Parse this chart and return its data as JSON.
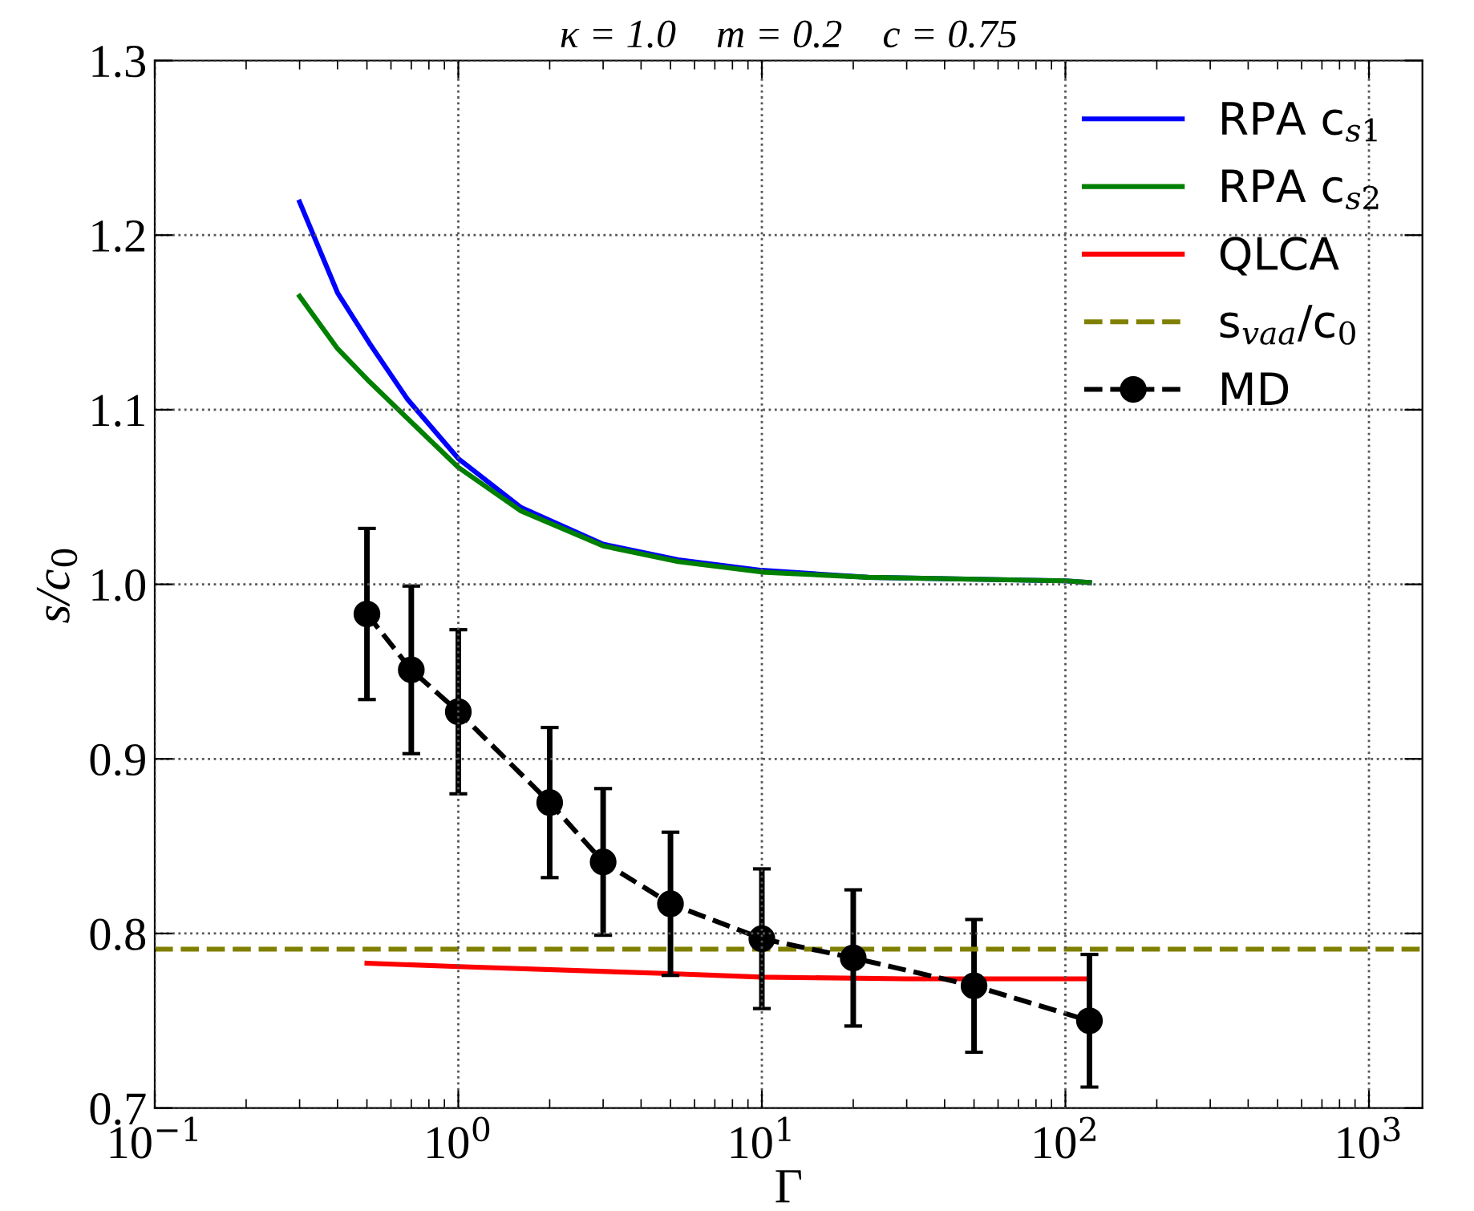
{
  "chart_data": {
    "type": "line",
    "title": "κ = 1.0    m = 0.2    c = 0.75",
    "xlabel": "Γ",
    "ylabel": "s/c$_{0}$",
    "log": "x",
    "grid": true,
    "legend": "top right",
    "xlim": [
      0.1,
      1500
    ],
    "ylim": [
      0.7,
      1.3
    ],
    "xticks": [
      {
        "value": 0.1,
        "label": "10$^{−1}$"
      },
      {
        "value": 1,
        "label": "10$^{0}$"
      },
      {
        "value": 10,
        "label": "10$^{1}$"
      },
      {
        "value": 100,
        "label": "10$^{2}$"
      },
      {
        "value": 1000,
        "label": "10$^{3}$"
      }
    ],
    "yticks": [
      0.7,
      0.8,
      0.9,
      {
        "value": 1.0,
        "label": "1.0"
      },
      1.1,
      1.2,
      1.3
    ],
    "series": [
      {
        "name": "RPA c$_{s1}$",
        "color": "#0000ff",
        "x": [
          0.3,
          0.4,
          0.51,
          0.68,
          1.0,
          1.61,
          3.0,
          5.3,
          10,
          22.4,
          100,
          120
        ],
        "values": [
          1.219,
          1.167,
          1.138,
          1.106,
          1.072,
          1.044,
          1.023,
          1.014,
          1.008,
          1.004,
          1.002,
          1.001
        ]
      },
      {
        "name": "RPA c$_{s2}$",
        "color": "#008000",
        "x": [
          0.3,
          0.4,
          0.51,
          0.68,
          1.0,
          1.61,
          3.0,
          5.3,
          10,
          22.4,
          100,
          120
        ],
        "values": [
          1.165,
          1.135,
          1.116,
          1.095,
          1.067,
          1.042,
          1.022,
          1.013,
          1.007,
          1.004,
          1.002,
          1.001
        ]
      },
      {
        "name": "QLCA",
        "color": "#ff0000",
        "x": [
          0.5,
          1.0,
          5,
          10,
          30,
          120
        ],
        "values": [
          0.783,
          0.781,
          0.777,
          0.775,
          0.774,
          0.774
        ]
      },
      {
        "name": "MD",
        "color": "#000000",
        "marker": "circle",
        "line_style": "dashed",
        "x": [
          0.5,
          0.7,
          1,
          2,
          3,
          5,
          10,
          20,
          50,
          120
        ],
        "values": [
          0.983,
          0.951,
          0.927,
          0.875,
          0.841,
          0.817,
          0.797,
          0.786,
          0.77,
          0.75
        ],
        "errors": [
          0.049,
          0.048,
          0.047,
          0.043,
          0.042,
          0.041,
          0.04,
          0.039,
          0.038,
          0.038
        ]
      }
    ],
    "ref_lines": [
      {
        "axis": "y",
        "value": 0.791,
        "label": "s$_{vaa}$/c$_{0}$",
        "color": "#808000",
        "line_style": "dashed"
      }
    ]
  }
}
